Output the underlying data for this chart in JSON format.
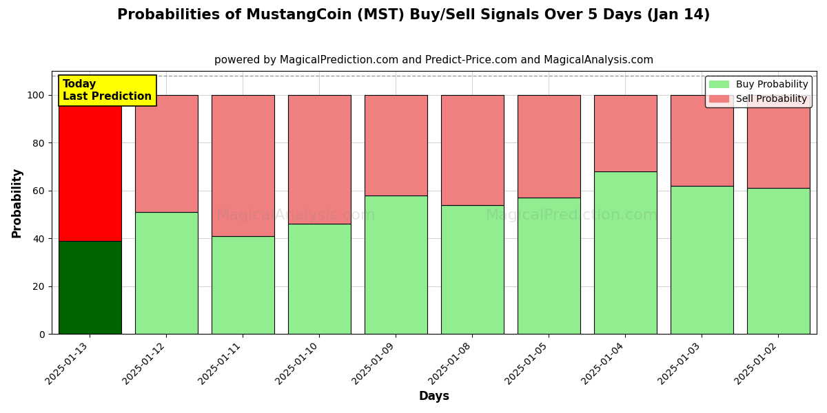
{
  "title": "Probabilities of MustangCoin (MST) Buy/Sell Signals Over 5 Days (Jan 14)",
  "subtitle": "powered by MagicalPrediction.com and Predict-Price.com and MagicalAnalysis.com",
  "xlabel": "Days",
  "ylabel": "Probability",
  "dates": [
    "2025-01-13",
    "2025-01-12",
    "2025-01-11",
    "2025-01-10",
    "2025-01-09",
    "2025-01-08",
    "2025-01-05",
    "2025-01-04",
    "2025-01-03",
    "2025-01-02"
  ],
  "buy_probs": [
    39,
    51,
    41,
    46,
    58,
    54,
    57,
    68,
    62,
    61
  ],
  "sell_probs": [
    61,
    49,
    59,
    54,
    42,
    46,
    43,
    32,
    38,
    39
  ],
  "today_buy_color": "#006400",
  "today_sell_color": "#FF0000",
  "buy_color": "#90EE90",
  "sell_color": "#F08080",
  "today_label": "Today\nLast Prediction",
  "legend_buy": "Buy Probability",
  "legend_sell": "Sell Probability",
  "ylim": [
    0,
    110
  ],
  "yticks": [
    0,
    20,
    40,
    60,
    80,
    100
  ],
  "dashed_line_y": 108,
  "watermark1": "MagicalAnalysis.com",
  "watermark2": "MagicalPrediction.com",
  "background_color": "#ffffff",
  "bar_edge_color": "#000000",
  "bar_linewidth": 0.8,
  "today_annotation_fontsize": 11,
  "today_annotation_bg": "#FFFF00",
  "title_fontsize": 15,
  "subtitle_fontsize": 11
}
